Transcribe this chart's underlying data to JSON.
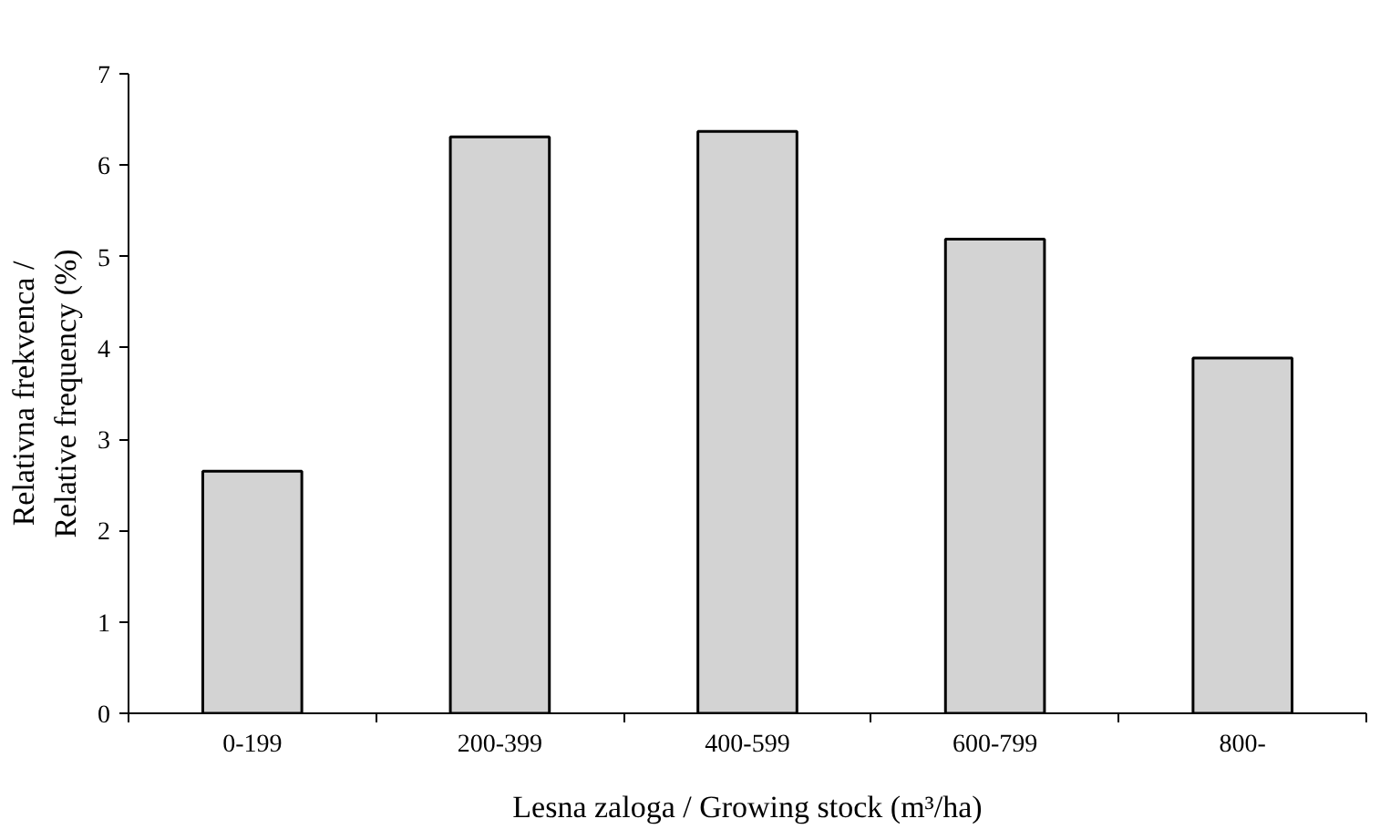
{
  "chart_data": {
    "type": "bar",
    "xlabel": "Lesna zaloga / Growing stock (m³/ha)",
    "ylabel": "Relativna frekvenca /\nRelative frequency (%)",
    "categories": [
      "0-199",
      "200-399",
      "400-599",
      "600-799",
      "800-"
    ],
    "values": [
      2.65,
      6.31,
      6.37,
      5.19,
      3.89
    ],
    "color": "#d3d3d3",
    "ylim": [
      0,
      7
    ],
    "yticks": [
      0,
      1,
      2,
      3,
      4,
      5,
      6,
      7
    ],
    "grid": false
  }
}
